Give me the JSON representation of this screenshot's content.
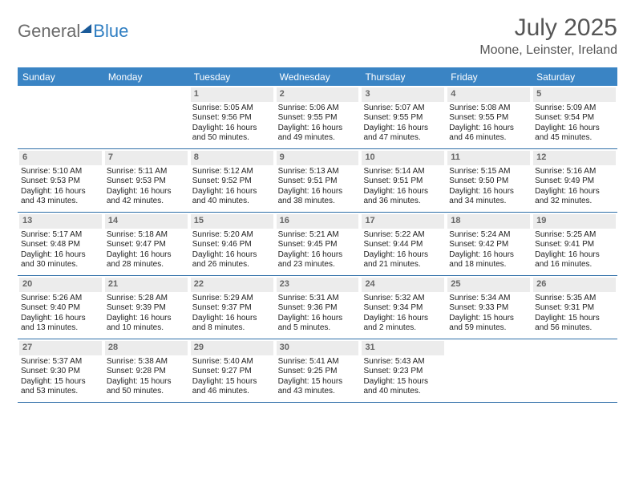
{
  "logo": {
    "text1": "General",
    "text2": "Blue"
  },
  "title": "July 2025",
  "location": "Moone, Leinster, Ireland",
  "colors": {
    "header_bg": "#3a84c4",
    "rule": "#2f6fa8",
    "daynum_bg": "#ececec",
    "logo_gray": "#6b6b6b",
    "logo_blue": "#2f7ec2"
  },
  "dayNames": [
    "Sunday",
    "Monday",
    "Tuesday",
    "Wednesday",
    "Thursday",
    "Friday",
    "Saturday"
  ],
  "weeks": [
    [
      null,
      null,
      {
        "n": "1",
        "sr": "Sunrise: 5:05 AM",
        "ss": "Sunset: 9:56 PM",
        "d1": "Daylight: 16 hours",
        "d2": "and 50 minutes."
      },
      {
        "n": "2",
        "sr": "Sunrise: 5:06 AM",
        "ss": "Sunset: 9:55 PM",
        "d1": "Daylight: 16 hours",
        "d2": "and 49 minutes."
      },
      {
        "n": "3",
        "sr": "Sunrise: 5:07 AM",
        "ss": "Sunset: 9:55 PM",
        "d1": "Daylight: 16 hours",
        "d2": "and 47 minutes."
      },
      {
        "n": "4",
        "sr": "Sunrise: 5:08 AM",
        "ss": "Sunset: 9:55 PM",
        "d1": "Daylight: 16 hours",
        "d2": "and 46 minutes."
      },
      {
        "n": "5",
        "sr": "Sunrise: 5:09 AM",
        "ss": "Sunset: 9:54 PM",
        "d1": "Daylight: 16 hours",
        "d2": "and 45 minutes."
      }
    ],
    [
      {
        "n": "6",
        "sr": "Sunrise: 5:10 AM",
        "ss": "Sunset: 9:53 PM",
        "d1": "Daylight: 16 hours",
        "d2": "and 43 minutes."
      },
      {
        "n": "7",
        "sr": "Sunrise: 5:11 AM",
        "ss": "Sunset: 9:53 PM",
        "d1": "Daylight: 16 hours",
        "d2": "and 42 minutes."
      },
      {
        "n": "8",
        "sr": "Sunrise: 5:12 AM",
        "ss": "Sunset: 9:52 PM",
        "d1": "Daylight: 16 hours",
        "d2": "and 40 minutes."
      },
      {
        "n": "9",
        "sr": "Sunrise: 5:13 AM",
        "ss": "Sunset: 9:51 PM",
        "d1": "Daylight: 16 hours",
        "d2": "and 38 minutes."
      },
      {
        "n": "10",
        "sr": "Sunrise: 5:14 AM",
        "ss": "Sunset: 9:51 PM",
        "d1": "Daylight: 16 hours",
        "d2": "and 36 minutes."
      },
      {
        "n": "11",
        "sr": "Sunrise: 5:15 AM",
        "ss": "Sunset: 9:50 PM",
        "d1": "Daylight: 16 hours",
        "d2": "and 34 minutes."
      },
      {
        "n": "12",
        "sr": "Sunrise: 5:16 AM",
        "ss": "Sunset: 9:49 PM",
        "d1": "Daylight: 16 hours",
        "d2": "and 32 minutes."
      }
    ],
    [
      {
        "n": "13",
        "sr": "Sunrise: 5:17 AM",
        "ss": "Sunset: 9:48 PM",
        "d1": "Daylight: 16 hours",
        "d2": "and 30 minutes."
      },
      {
        "n": "14",
        "sr": "Sunrise: 5:18 AM",
        "ss": "Sunset: 9:47 PM",
        "d1": "Daylight: 16 hours",
        "d2": "and 28 minutes."
      },
      {
        "n": "15",
        "sr": "Sunrise: 5:20 AM",
        "ss": "Sunset: 9:46 PM",
        "d1": "Daylight: 16 hours",
        "d2": "and 26 minutes."
      },
      {
        "n": "16",
        "sr": "Sunrise: 5:21 AM",
        "ss": "Sunset: 9:45 PM",
        "d1": "Daylight: 16 hours",
        "d2": "and 23 minutes."
      },
      {
        "n": "17",
        "sr": "Sunrise: 5:22 AM",
        "ss": "Sunset: 9:44 PM",
        "d1": "Daylight: 16 hours",
        "d2": "and 21 minutes."
      },
      {
        "n": "18",
        "sr": "Sunrise: 5:24 AM",
        "ss": "Sunset: 9:42 PM",
        "d1": "Daylight: 16 hours",
        "d2": "and 18 minutes."
      },
      {
        "n": "19",
        "sr": "Sunrise: 5:25 AM",
        "ss": "Sunset: 9:41 PM",
        "d1": "Daylight: 16 hours",
        "d2": "and 16 minutes."
      }
    ],
    [
      {
        "n": "20",
        "sr": "Sunrise: 5:26 AM",
        "ss": "Sunset: 9:40 PM",
        "d1": "Daylight: 16 hours",
        "d2": "and 13 minutes."
      },
      {
        "n": "21",
        "sr": "Sunrise: 5:28 AM",
        "ss": "Sunset: 9:39 PM",
        "d1": "Daylight: 16 hours",
        "d2": "and 10 minutes."
      },
      {
        "n": "22",
        "sr": "Sunrise: 5:29 AM",
        "ss": "Sunset: 9:37 PM",
        "d1": "Daylight: 16 hours",
        "d2": "and 8 minutes."
      },
      {
        "n": "23",
        "sr": "Sunrise: 5:31 AM",
        "ss": "Sunset: 9:36 PM",
        "d1": "Daylight: 16 hours",
        "d2": "and 5 minutes."
      },
      {
        "n": "24",
        "sr": "Sunrise: 5:32 AM",
        "ss": "Sunset: 9:34 PM",
        "d1": "Daylight: 16 hours",
        "d2": "and 2 minutes."
      },
      {
        "n": "25",
        "sr": "Sunrise: 5:34 AM",
        "ss": "Sunset: 9:33 PM",
        "d1": "Daylight: 15 hours",
        "d2": "and 59 minutes."
      },
      {
        "n": "26",
        "sr": "Sunrise: 5:35 AM",
        "ss": "Sunset: 9:31 PM",
        "d1": "Daylight: 15 hours",
        "d2": "and 56 minutes."
      }
    ],
    [
      {
        "n": "27",
        "sr": "Sunrise: 5:37 AM",
        "ss": "Sunset: 9:30 PM",
        "d1": "Daylight: 15 hours",
        "d2": "and 53 minutes."
      },
      {
        "n": "28",
        "sr": "Sunrise: 5:38 AM",
        "ss": "Sunset: 9:28 PM",
        "d1": "Daylight: 15 hours",
        "d2": "and 50 minutes."
      },
      {
        "n": "29",
        "sr": "Sunrise: 5:40 AM",
        "ss": "Sunset: 9:27 PM",
        "d1": "Daylight: 15 hours",
        "d2": "and 46 minutes."
      },
      {
        "n": "30",
        "sr": "Sunrise: 5:41 AM",
        "ss": "Sunset: 9:25 PM",
        "d1": "Daylight: 15 hours",
        "d2": "and 43 minutes."
      },
      {
        "n": "31",
        "sr": "Sunrise: 5:43 AM",
        "ss": "Sunset: 9:23 PM",
        "d1": "Daylight: 15 hours",
        "d2": "and 40 minutes."
      },
      null,
      null
    ]
  ]
}
